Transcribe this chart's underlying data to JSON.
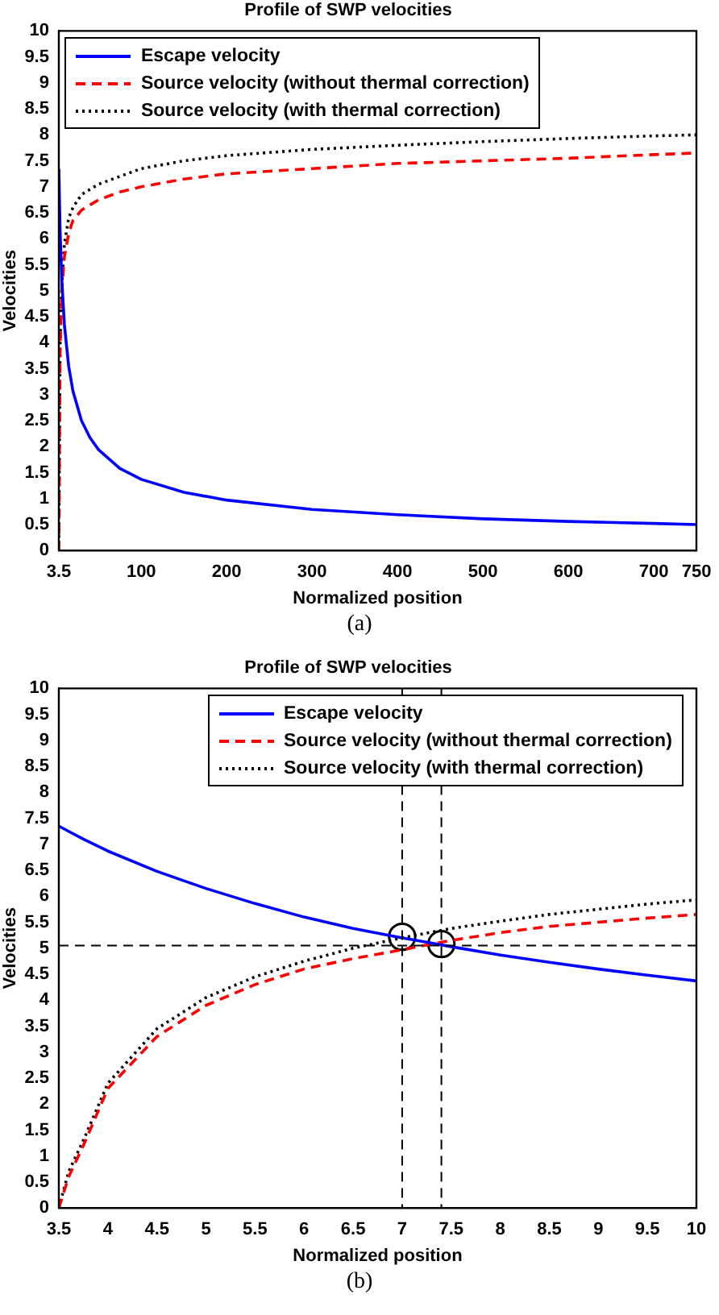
{
  "chart_data": [
    {
      "type": "line",
      "title": "Profile of SWP velocities",
      "xlabel": "Normalized position",
      "ylabel": "Velocities",
      "annotations": [
        "(a)"
      ],
      "legend": "top left",
      "grid": false,
      "marker": "none",
      "x": [
        3.5,
        5,
        7,
        10,
        15,
        20,
        30,
        40,
        50,
        75,
        100,
        150,
        200,
        300,
        400,
        500,
        600,
        700,
        750
      ],
      "xlim": [
        3.5,
        750
      ],
      "xticks": [
        3.5,
        100,
        200,
        300,
        400,
        500,
        600,
        700,
        750
      ],
      "ylim": [
        0,
        10
      ],
      "yticks": [
        0,
        0.5,
        1,
        1.5,
        2,
        2.5,
        3,
        3.5,
        4,
        4.5,
        5,
        5.5,
        6,
        6.5,
        7,
        7.5,
        8,
        8.5,
        9,
        9.5,
        10
      ],
      "series": [
        {
          "name": "Escape velocity",
          "color": "#0000ff",
          "line_style": "solid",
          "values": [
            7.35,
            6.15,
            5.2,
            4.35,
            3.55,
            3.07,
            2.5,
            2.17,
            1.94,
            1.58,
            1.37,
            1.12,
            0.97,
            0.79,
            0.69,
            0.61,
            0.56,
            0.52,
            0.5
          ]
        },
        {
          "name": "Source velocity (without thermal correction)",
          "color": "#ff0000",
          "line_style": "dashed",
          "values": [
            0,
            3.9,
            5.0,
            5.65,
            6.1,
            6.35,
            6.55,
            6.65,
            6.75,
            6.9,
            7.0,
            7.15,
            7.25,
            7.35,
            7.45,
            7.5,
            7.55,
            7.62,
            7.65
          ]
        },
        {
          "name": "Source velocity (with thermal correction)",
          "color": "#000000",
          "line_style": "dotted",
          "values": [
            0,
            4.0,
            5.1,
            5.9,
            6.4,
            6.6,
            6.85,
            6.95,
            7.05,
            7.2,
            7.35,
            7.5,
            7.6,
            7.72,
            7.8,
            7.87,
            7.93,
            7.98,
            8.0
          ]
        }
      ]
    },
    {
      "type": "line",
      "title": "Profile of SWP velocities",
      "xlabel": "Normalized position",
      "ylabel": "Velocities",
      "annotations": [
        "(b)"
      ],
      "legend": "top right",
      "grid": false,
      "marker": "none",
      "x": [
        3.5,
        3.6,
        3.75,
        4,
        4.5,
        5,
        5.5,
        6,
        6.5,
        7,
        7.5,
        8,
        8.5,
        9,
        9.5,
        10
      ],
      "xlim": [
        3.5,
        10
      ],
      "xticks": [
        3.5,
        4,
        4.5,
        5,
        5.5,
        6,
        6.5,
        7,
        7.5,
        8,
        8.5,
        9,
        9.5,
        10
      ],
      "ylim": [
        0,
        10
      ],
      "yticks": [
        0,
        0.5,
        1,
        1.5,
        2,
        2.5,
        3,
        3.5,
        4,
        4.5,
        5,
        5.5,
        6,
        6.5,
        7,
        7.5,
        8,
        8.5,
        9,
        9.5,
        10
      ],
      "ref_lines": [
        {
          "axis": "x",
          "value": 7,
          "color": "#000000",
          "line_style": "dashed"
        },
        {
          "axis": "x",
          "value": 7.4,
          "color": "#000000",
          "line_style": "dashed"
        },
        {
          "axis": "y",
          "value": 5.05,
          "color": "#000000",
          "line_style": "dashed"
        }
      ],
      "series": [
        {
          "name": "Escape velocity",
          "color": "#0000ff",
          "line_style": "solid",
          "values": [
            7.35,
            7.25,
            7.1,
            6.87,
            6.48,
            6.15,
            5.86,
            5.6,
            5.38,
            5.2,
            5.03,
            4.87,
            4.73,
            4.6,
            4.48,
            4.37
          ]
        },
        {
          "name": "Source velocity (without thermal correction)",
          "color": "#ff0000",
          "line_style": "dashed",
          "values": [
            0,
            0.6,
            1.2,
            2.3,
            3.3,
            3.9,
            4.3,
            4.6,
            4.8,
            4.97,
            5.15,
            5.3,
            5.42,
            5.5,
            5.58,
            5.65
          ]
        },
        {
          "name": "Source velocity (with thermal correction)",
          "color": "#000000",
          "line_style": "dotted",
          "values": [
            0,
            0.7,
            1.3,
            2.4,
            3.45,
            4.05,
            4.45,
            4.75,
            5.0,
            5.2,
            5.38,
            5.52,
            5.65,
            5.75,
            5.85,
            5.93
          ]
        },
        {
          "type": "scatter",
          "color": "#000000",
          "marker": "circle",
          "x": [
            7,
            7.4
          ],
          "values": [
            5.22,
            5.08
          ]
        }
      ]
    }
  ]
}
